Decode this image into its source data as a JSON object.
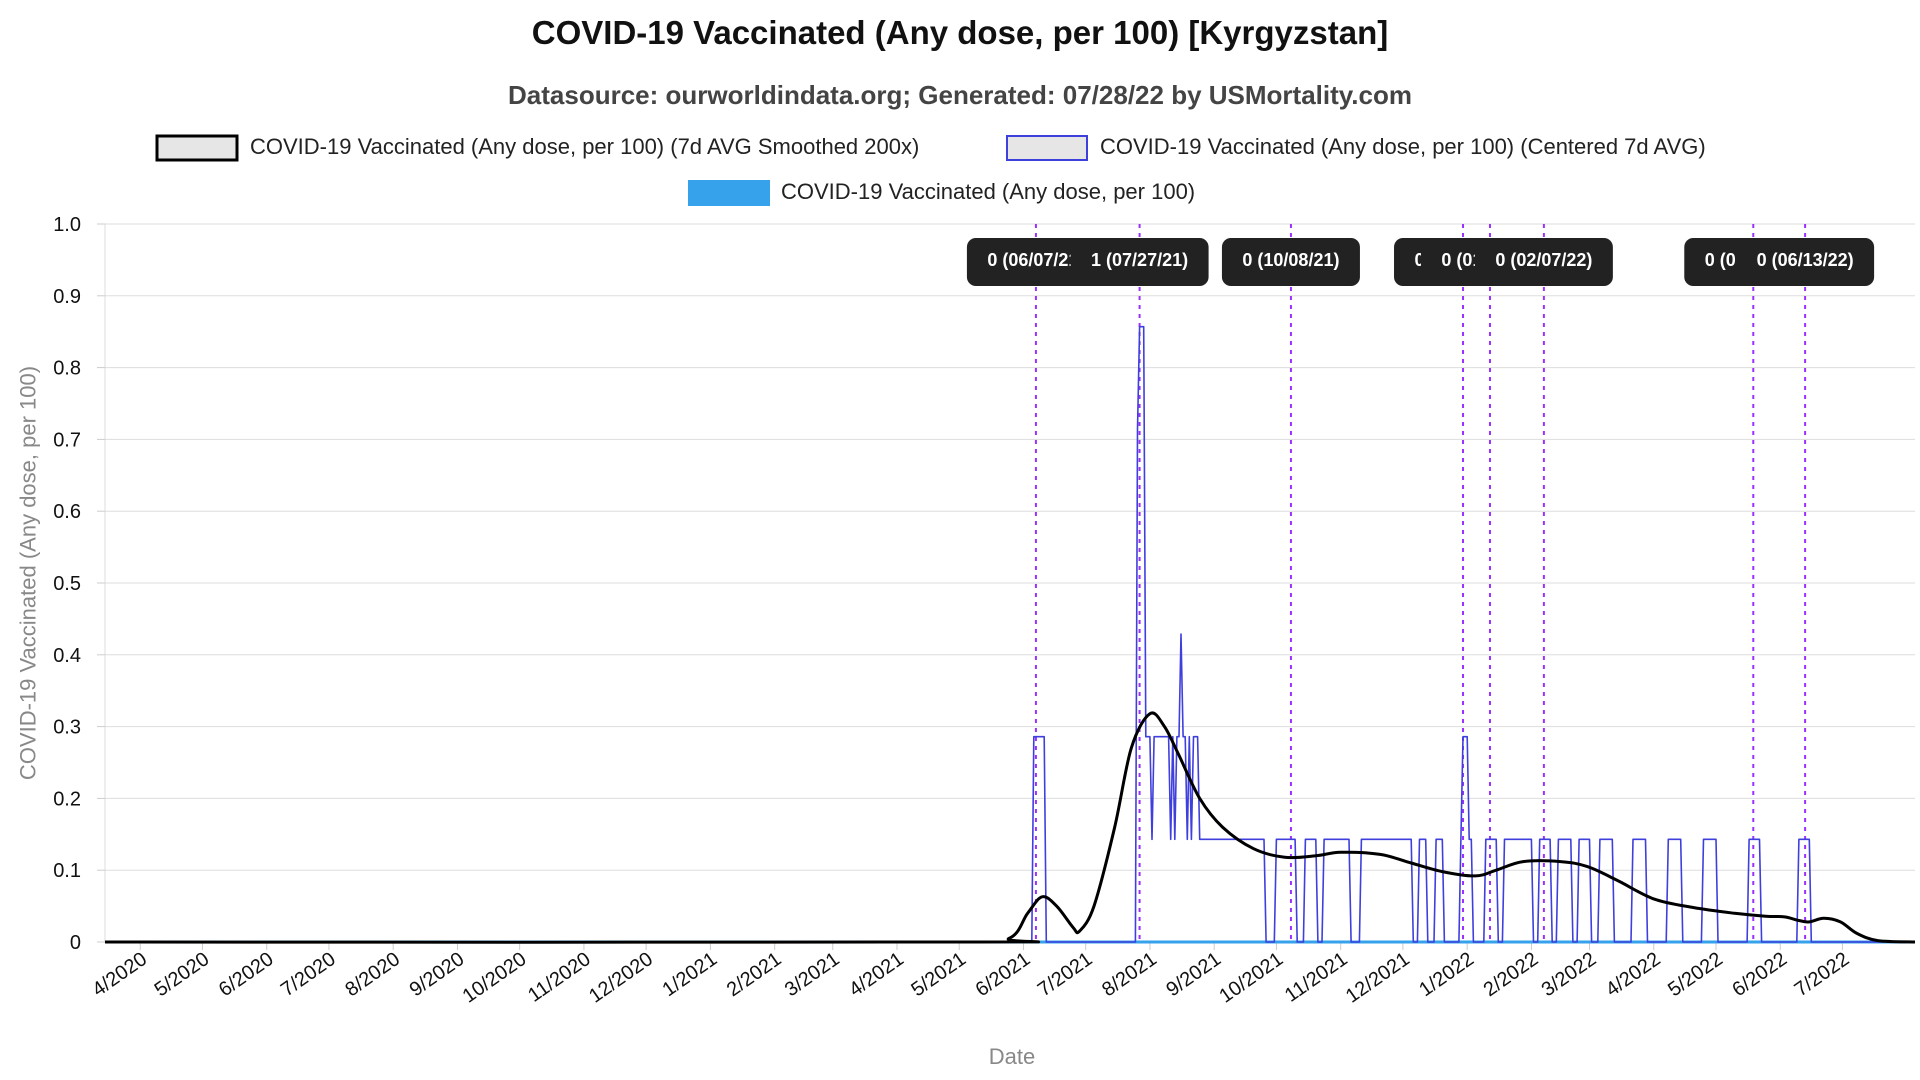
{
  "title": "COVID-19 Vaccinated (Any dose, per 100) [Kyrgyzstan]",
  "subtitle": "Datasource: ourworldindata.org; Generated: 07/28/22 by USMortality.com",
  "chart_data": {
    "type": "line",
    "xlabel": "Date",
    "ylabel": "COVID-19 Vaccinated (Any dose, per 100)",
    "ylim": [
      0,
      1.0
    ],
    "yticks": [
      "0",
      "0.1",
      "0.2",
      "0.3",
      "0.4",
      "0.5",
      "0.6",
      "0.7",
      "0.8",
      "0.9",
      "1.0"
    ],
    "xlim": [
      "2020-03-15",
      "2022-08-05"
    ],
    "xticks": [
      "4/2020",
      "5/2020",
      "6/2020",
      "7/2020",
      "8/2020",
      "9/2020",
      "10/2020",
      "11/2020",
      "12/2020",
      "1/2021",
      "2/2021",
      "3/2021",
      "4/2021",
      "5/2021",
      "6/2021",
      "7/2021",
      "8/2021",
      "9/2021",
      "10/2021",
      "11/2021",
      "12/2021",
      "1/2022",
      "2/2022",
      "3/2022",
      "4/2022",
      "5/2022",
      "6/2022",
      "7/2022"
    ],
    "grid": true,
    "legend_position": "top",
    "series": [
      {
        "name": "COVID-19 Vaccinated (Any dose, per 100) (7d AVG Smoothed 200x)",
        "color": "#000000",
        "legend_fill": "#e6e6e6",
        "points": [
          [
            "2020-03-15",
            0
          ],
          [
            "2021-05-01",
            0
          ],
          [
            "2021-05-25",
            0.005
          ],
          [
            "2021-06-03",
            0.04
          ],
          [
            "2021-06-10",
            0.063
          ],
          [
            "2021-06-17",
            0.05
          ],
          [
            "2021-06-25",
            0.02
          ],
          [
            "2021-06-28",
            0.015
          ],
          [
            "2021-07-05",
            0.05
          ],
          [
            "2021-07-15",
            0.16
          ],
          [
            "2021-07-23",
            0.27
          ],
          [
            "2021-08-01",
            0.318
          ],
          [
            "2021-08-08",
            0.3
          ],
          [
            "2021-08-15",
            0.26
          ],
          [
            "2021-08-25",
            0.2
          ],
          [
            "2021-09-05",
            0.16
          ],
          [
            "2021-09-20",
            0.13
          ],
          [
            "2021-10-05",
            0.118
          ],
          [
            "2021-10-20",
            0.12
          ],
          [
            "2021-11-01",
            0.125
          ],
          [
            "2021-11-20",
            0.122
          ],
          [
            "2021-12-05",
            0.11
          ],
          [
            "2021-12-20",
            0.098
          ],
          [
            "2022-01-05",
            0.092
          ],
          [
            "2022-01-15",
            0.1
          ],
          [
            "2022-01-28",
            0.112
          ],
          [
            "2022-02-15",
            0.112
          ],
          [
            "2022-02-28",
            0.105
          ],
          [
            "2022-03-15",
            0.085
          ],
          [
            "2022-04-01",
            0.06
          ],
          [
            "2022-04-20",
            0.048
          ],
          [
            "2022-05-10",
            0.04
          ],
          [
            "2022-05-25",
            0.036
          ],
          [
            "2022-06-03",
            0.035
          ],
          [
            "2022-06-10",
            0.03
          ],
          [
            "2022-06-15",
            0.028
          ],
          [
            "2022-06-22",
            0.033
          ],
          [
            "2022-06-30",
            0.028
          ],
          [
            "2022-07-08",
            0.012
          ],
          [
            "2022-07-18",
            0.002
          ],
          [
            "2022-08-05",
            0
          ]
        ]
      },
      {
        "name": "COVID-19 Vaccinated (Any dose, per 100) (Centered 7d AVG)",
        "color": "#3f3fdd",
        "legend_fill": "#e6e6e6",
        "points": [
          [
            "2020-03-15",
            0
          ],
          [
            "2021-06-05",
            0
          ],
          [
            "2021-06-06",
            0.286
          ],
          [
            "2021-06-11",
            0.286
          ],
          [
            "2021-06-12",
            0
          ],
          [
            "2021-07-25",
            0
          ],
          [
            "2021-07-26",
            0.714
          ],
          [
            "2021-07-27",
            0.857
          ],
          [
            "2021-07-29",
            0.857
          ],
          [
            "2021-07-30",
            0.286
          ],
          [
            "2021-08-01",
            0.286
          ],
          [
            "2021-08-02",
            0.143
          ],
          [
            "2021-08-03",
            0.286
          ],
          [
            "2021-08-10",
            0.286
          ],
          [
            "2021-08-11",
            0.143
          ],
          [
            "2021-08-12",
            0.286
          ],
          [
            "2021-08-13",
            0.143
          ],
          [
            "2021-08-14",
            0.286
          ],
          [
            "2021-08-15",
            0.286
          ],
          [
            "2021-08-16",
            0.429
          ],
          [
            "2021-08-17",
            0.286
          ],
          [
            "2021-08-18",
            0.286
          ],
          [
            "2021-08-19",
            0.143
          ],
          [
            "2021-08-20",
            0.286
          ],
          [
            "2021-08-21",
            0.143
          ],
          [
            "2021-08-22",
            0.286
          ],
          [
            "2021-08-24",
            0.286
          ],
          [
            "2021-08-25",
            0.143
          ],
          [
            "2021-09-25",
            0.143
          ],
          [
            "2021-09-26",
            0
          ],
          [
            "2021-09-30",
            0
          ],
          [
            "2021-10-01",
            0.143
          ],
          [
            "2021-10-10",
            0.143
          ],
          [
            "2021-10-11",
            0
          ],
          [
            "2021-10-14",
            0
          ],
          [
            "2021-10-15",
            0.143
          ],
          [
            "2021-10-20",
            0.143
          ],
          [
            "2021-10-21",
            0
          ],
          [
            "2021-10-23",
            0
          ],
          [
            "2021-10-24",
            0.143
          ],
          [
            "2021-11-05",
            0.143
          ],
          [
            "2021-11-06",
            0
          ],
          [
            "2021-11-10",
            0
          ],
          [
            "2021-11-11",
            0.143
          ],
          [
            "2021-12-05",
            0.143
          ],
          [
            "2021-12-06",
            0
          ],
          [
            "2021-12-08",
            0
          ],
          [
            "2021-12-09",
            0.143
          ],
          [
            "2021-12-12",
            0.143
          ],
          [
            "2021-12-13",
            0
          ],
          [
            "2021-12-16",
            0
          ],
          [
            "2021-12-17",
            0.143
          ],
          [
            "2021-12-20",
            0.143
          ],
          [
            "2021-12-21",
            0
          ],
          [
            "2021-12-28",
            0
          ],
          [
            "2021-12-29",
            0.143
          ],
          [
            "2021-12-30",
            0.286
          ],
          [
            "2022-01-01",
            0.286
          ],
          [
            "2022-01-02",
            0.143
          ],
          [
            "2022-01-03",
            0.143
          ],
          [
            "2022-01-04",
            0
          ],
          [
            "2022-01-09",
            0
          ],
          [
            "2022-01-10",
            0.143
          ],
          [
            "2022-01-15",
            0.143
          ],
          [
            "2022-01-16",
            0
          ],
          [
            "2022-01-18",
            0
          ],
          [
            "2022-01-19",
            0.143
          ],
          [
            "2022-02-01",
            0.143
          ],
          [
            "2022-02-02",
            0
          ],
          [
            "2022-02-04",
            0
          ],
          [
            "2022-02-05",
            0.143
          ],
          [
            "2022-02-10",
            0.143
          ],
          [
            "2022-02-11",
            0
          ],
          [
            "2022-02-13",
            0
          ],
          [
            "2022-02-14",
            0.143
          ],
          [
            "2022-02-20",
            0.143
          ],
          [
            "2022-02-21",
            0
          ],
          [
            "2022-02-23",
            0
          ],
          [
            "2022-02-24",
            0.143
          ],
          [
            "2022-03-01",
            0.143
          ],
          [
            "2022-03-02",
            0
          ],
          [
            "2022-03-05",
            0
          ],
          [
            "2022-03-06",
            0.143
          ],
          [
            "2022-03-12",
            0.143
          ],
          [
            "2022-03-13",
            0
          ],
          [
            "2022-03-21",
            0
          ],
          [
            "2022-03-22",
            0.143
          ],
          [
            "2022-03-28",
            0.143
          ],
          [
            "2022-03-29",
            0
          ],
          [
            "2022-04-07",
            0
          ],
          [
            "2022-04-08",
            0.143
          ],
          [
            "2022-04-14",
            0.143
          ],
          [
            "2022-04-15",
            0
          ],
          [
            "2022-04-24",
            0
          ],
          [
            "2022-04-25",
            0.143
          ],
          [
            "2022-05-01",
            0.143
          ],
          [
            "2022-05-02",
            0
          ],
          [
            "2022-05-16",
            0
          ],
          [
            "2022-05-17",
            0.143
          ],
          [
            "2022-05-22",
            0.143
          ],
          [
            "2022-05-23",
            0
          ],
          [
            "2022-06-09",
            0
          ],
          [
            "2022-06-10",
            0.143
          ],
          [
            "2022-06-15",
            0.143
          ],
          [
            "2022-06-16",
            0
          ],
          [
            "2022-08-05",
            0
          ]
        ]
      },
      {
        "name": "COVID-19 Vaccinated (Any dose, per 100)",
        "color": "#36a2eb",
        "legend_fill": "#36a2eb",
        "points": [
          [
            "2020-03-15",
            0
          ],
          [
            "2022-08-05",
            0
          ]
        ]
      }
    ],
    "annotations": [
      {
        "label": "0 (06/07/21)",
        "date": "2021-06-07"
      },
      {
        "label": "1 (07/27/21)",
        "date": "2021-07-27"
      },
      {
        "label": "0 (10/08/21)",
        "date": "2021-10-08"
      },
      {
        "label": "0 (12/30/21)",
        "date": "2021-12-30"
      },
      {
        "label": "0 (01/12/22)",
        "date": "2022-01-12"
      },
      {
        "label": "0 (02/07/22)",
        "date": "2022-02-07"
      },
      {
        "label": "0 (05/19/22)",
        "date": "2022-05-19"
      },
      {
        "label": "0 (06/13/22)",
        "date": "2022-06-13"
      }
    ],
    "annotation_line_color": "#9b30ff",
    "annotation_box_color": "#222222"
  }
}
